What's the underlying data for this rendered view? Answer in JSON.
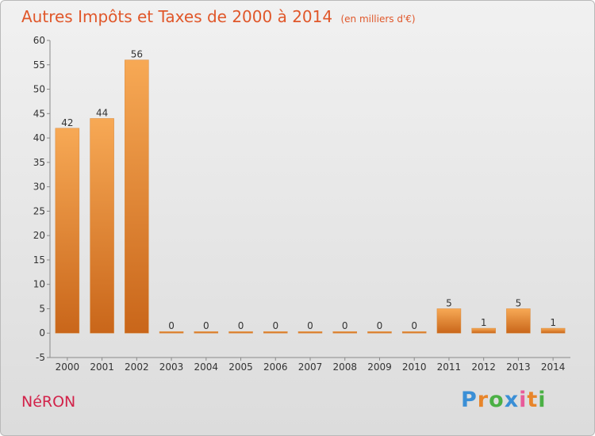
{
  "title": "Autres Impôts et Taxes de 2000 à 2014",
  "subtitle": "(en milliers d'€)",
  "place": "NéRON",
  "brand": {
    "letters": [
      "P",
      "r",
      "o",
      "x",
      "i",
      "t",
      "i"
    ],
    "colors": [
      "#3a8fd6",
      "#e8852a",
      "#4bb045",
      "#3a8fd6",
      "#e85b9a",
      "#e8852a",
      "#4bb045"
    ]
  },
  "colors": {
    "bar_top": "#f7a955",
    "bar_bottom": "#c9661a",
    "text": "#333333"
  },
  "chart_data": {
    "type": "bar",
    "categories": [
      "2000",
      "2001",
      "2002",
      "2003",
      "2004",
      "2005",
      "2006",
      "2007",
      "2008",
      "2009",
      "2010",
      "2011",
      "2012",
      "2013",
      "2014"
    ],
    "values": [
      42,
      44,
      56,
      0,
      0,
      0,
      0,
      0,
      0,
      0,
      0,
      5,
      1,
      5,
      1
    ],
    "title": "Autres Impôts et Taxes de 2000 à 2014",
    "xlabel": "",
    "ylabel": "",
    "ylim": [
      -5,
      60
    ],
    "yticks": [
      -5,
      0,
      5,
      10,
      15,
      20,
      25,
      30,
      35,
      40,
      45,
      50,
      55,
      60
    ],
    "grid": false,
    "data_labels": true
  }
}
